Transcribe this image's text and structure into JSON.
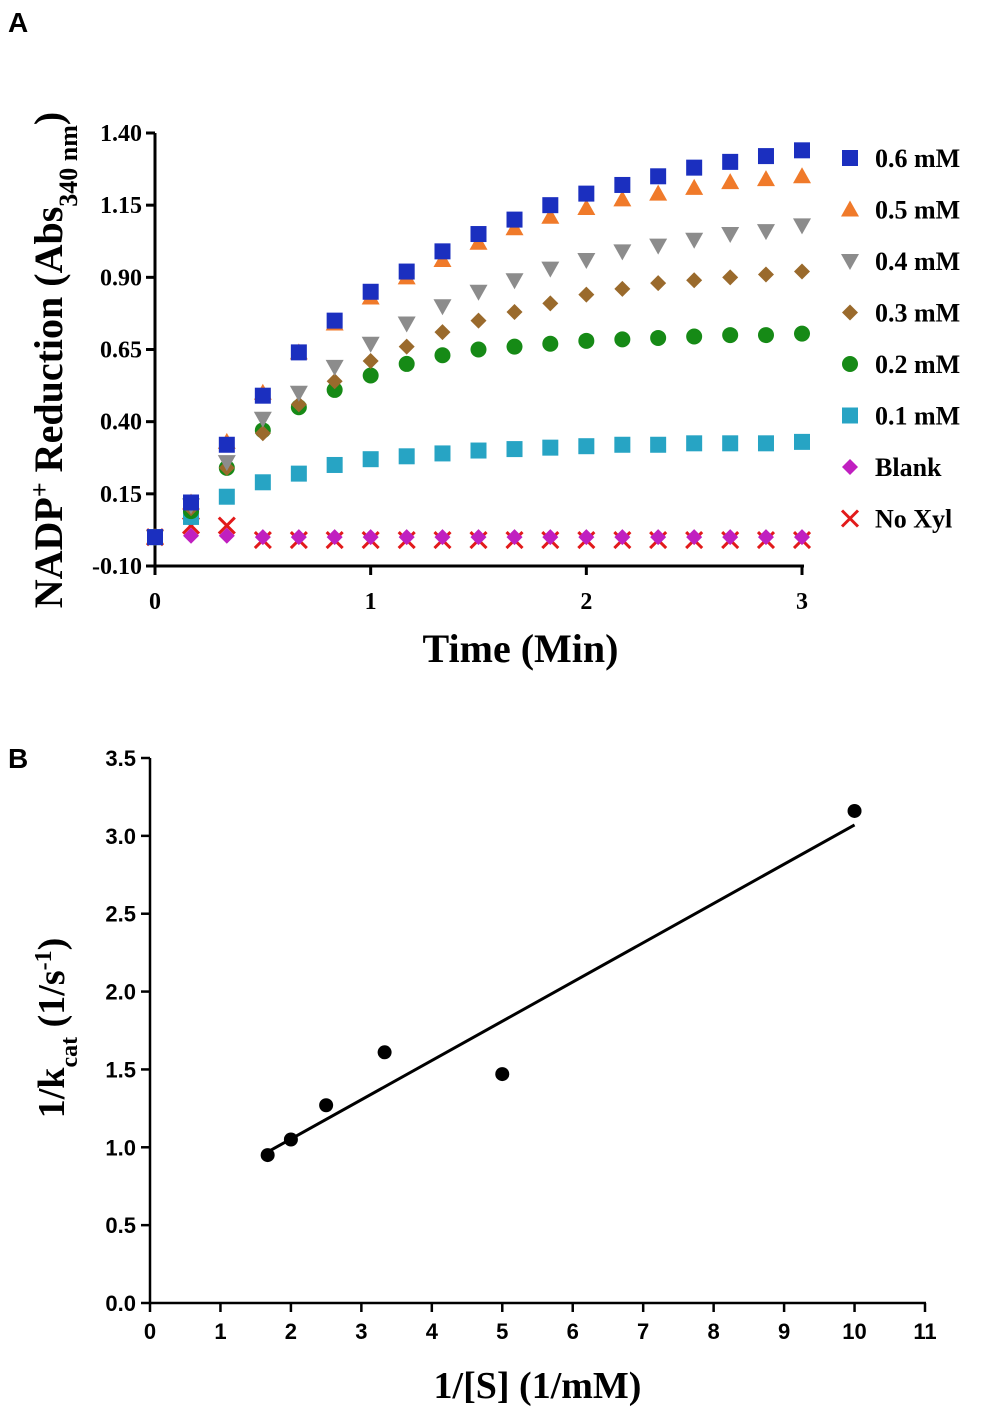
{
  "chart_data": [
    {
      "panel": "A",
      "type": "scatter",
      "xlabel": "Time (Min)",
      "ylabel": {
        "main": "NADP",
        "sup": "+",
        "rest": " Reduction (Abs",
        "sub": "340 nm",
        "close": ")"
      },
      "xlim": [
        0,
        3
      ],
      "ylim": [
        -0.1,
        1.4
      ],
      "xticks": [
        0,
        1,
        2,
        3
      ],
      "xtick_labels": [
        "0",
        "1",
        "2",
        "3"
      ],
      "yticks": [
        -0.1,
        0.15,
        0.4,
        0.65,
        0.9,
        1.15,
        1.4
      ],
      "ytick_labels": [
        "-0.10",
        "0.15",
        "0.40",
        "0.65",
        "0.90",
        "1.15",
        "1.40"
      ],
      "x": [
        0,
        0.167,
        0.333,
        0.5,
        0.667,
        0.833,
        1.0,
        1.167,
        1.333,
        1.5,
        1.667,
        1.833,
        2.0,
        2.167,
        2.333,
        2.5,
        2.667,
        2.833,
        3.0
      ],
      "series": [
        {
          "name": "0.6 mM",
          "marker": "square",
          "color": "#1b2fbf",
          "values": [
            0.0,
            0.12,
            0.32,
            0.49,
            0.64,
            0.75,
            0.85,
            0.92,
            0.99,
            1.05,
            1.1,
            1.15,
            1.19,
            1.22,
            1.25,
            1.28,
            1.3,
            1.32,
            1.34
          ]
        },
        {
          "name": "0.5 mM",
          "marker": "triangle-up",
          "color": "#f07a2a",
          "values": [
            0.0,
            0.12,
            0.33,
            0.5,
            0.64,
            0.74,
            0.83,
            0.9,
            0.96,
            1.02,
            1.07,
            1.11,
            1.14,
            1.17,
            1.19,
            1.21,
            1.23,
            1.24,
            1.25
          ]
        },
        {
          "name": "0.4 mM",
          "marker": "triangle-down",
          "color": "#8c8c8c",
          "values": [
            0.0,
            0.11,
            0.26,
            0.41,
            0.5,
            0.59,
            0.67,
            0.74,
            0.8,
            0.85,
            0.89,
            0.93,
            0.96,
            0.99,
            1.01,
            1.03,
            1.05,
            1.06,
            1.08
          ]
        },
        {
          "name": "0.3 mM",
          "marker": "diamond",
          "color": "#9a6a2c",
          "values": [
            0.0,
            0.1,
            0.24,
            0.36,
            0.46,
            0.54,
            0.61,
            0.66,
            0.71,
            0.75,
            0.78,
            0.81,
            0.84,
            0.86,
            0.88,
            0.89,
            0.9,
            0.91,
            0.92
          ]
        },
        {
          "name": "0.2 mM",
          "marker": "circle",
          "color": "#168a16",
          "values": [
            0.0,
            0.09,
            0.24,
            0.37,
            0.45,
            0.51,
            0.56,
            0.6,
            0.63,
            0.65,
            0.66,
            0.67,
            0.68,
            0.685,
            0.69,
            0.695,
            0.7,
            0.7,
            0.705
          ]
        },
        {
          "name": "0.1 mM",
          "marker": "square",
          "color": "#27a4c4",
          "values": [
            0.0,
            0.07,
            0.14,
            0.19,
            0.22,
            0.25,
            0.27,
            0.28,
            0.29,
            0.3,
            0.305,
            0.31,
            0.315,
            0.32,
            0.32,
            0.325,
            0.325,
            0.325,
            0.33
          ]
        },
        {
          "name": "Blank",
          "marker": "diamond",
          "color": "#c01fc0",
          "values": [
            0.0,
            0.005,
            0.005,
            0.0,
            0.0,
            0.0,
            0.0,
            0.0,
            0.0,
            0.0,
            0.0,
            0.0,
            0.0,
            0.0,
            0.0,
            0.0,
            0.0,
            0.0,
            0.0
          ]
        },
        {
          "name": "No Xyl",
          "marker": "x",
          "color": "#e21a1a",
          "values": [
            0.0,
            0.04,
            0.04,
            -0.01,
            -0.01,
            -0.01,
            -0.01,
            -0.01,
            -0.01,
            -0.01,
            -0.01,
            -0.01,
            -0.01,
            -0.01,
            -0.01,
            -0.01,
            -0.01,
            -0.01,
            -0.01
          ]
        }
      ]
    },
    {
      "panel": "B",
      "type": "scatter",
      "xlabel": "1/[S] (1/mM)",
      "ylabel": {
        "main": "1/k",
        "sub": "cat",
        "rest": " (1/s",
        "sup": "-1",
        "close": ")"
      },
      "xlim": [
        0,
        11
      ],
      "ylim": [
        0,
        3.5
      ],
      "xticks": [
        0,
        1,
        2,
        3,
        4,
        5,
        6,
        7,
        8,
        9,
        10,
        11
      ],
      "xtick_labels": [
        "0",
        "1",
        "2",
        "3",
        "4",
        "5",
        "6",
        "7",
        "8",
        "9",
        "10",
        "11"
      ],
      "yticks": [
        0,
        0.5,
        1.0,
        1.5,
        2.0,
        2.5,
        3.0,
        3.5
      ],
      "ytick_labels": [
        "0.0",
        "0.5",
        "1.0",
        "1.5",
        "2.0",
        "2.5",
        "3.0",
        "3.5"
      ],
      "points": {
        "x": [
          1.67,
          2.0,
          2.5,
          3.33,
          5.0,
          10.0
        ],
        "y": [
          0.95,
          1.05,
          1.27,
          1.61,
          1.47,
          3.16
        ]
      },
      "fit_line": {
        "x": [
          1.67,
          10.0
        ],
        "y": [
          0.97,
          3.07
        ]
      }
    }
  ],
  "panels": {
    "a_letter": "A",
    "b_letter": "B"
  }
}
